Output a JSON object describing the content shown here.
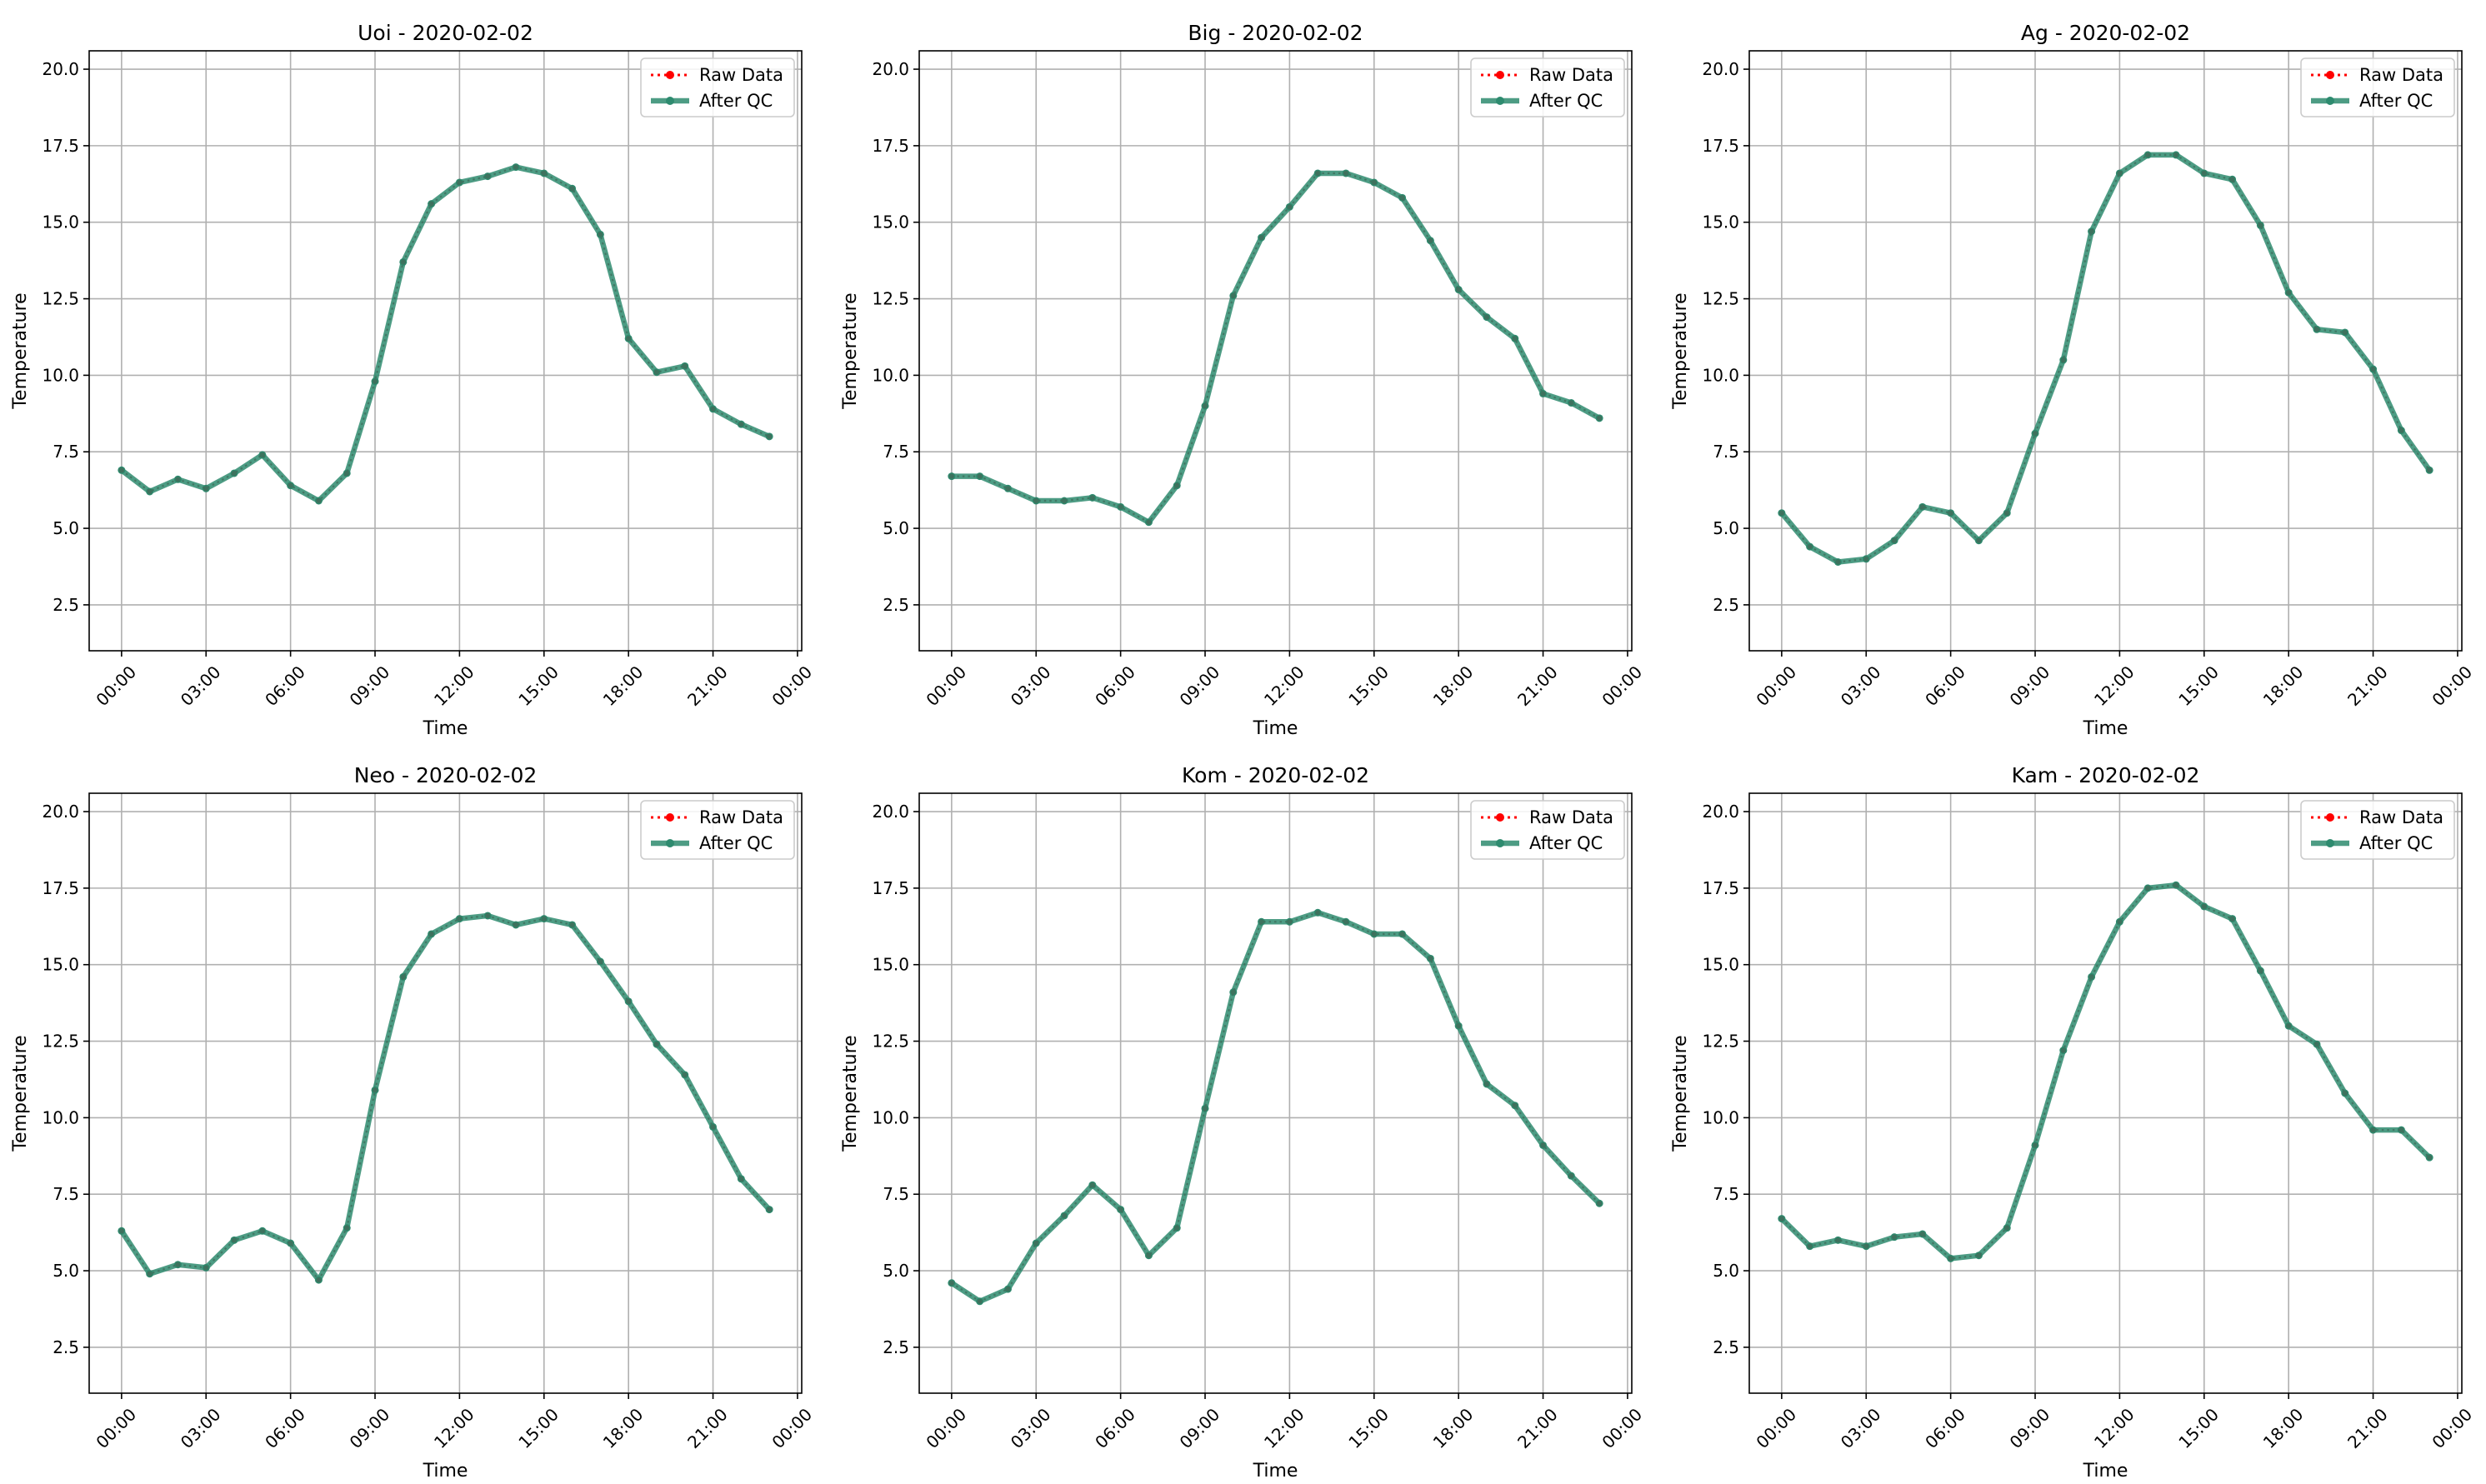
{
  "colors": {
    "raw": "#ff0000",
    "qc": "#2e8b6f",
    "grid": "#b0b0b0",
    "axis": "#000000",
    "legend_border": "#cccccc"
  },
  "chart_data": [
    {
      "type": "line",
      "title": "Uoi - 2020-02-02",
      "xlabel": "Time",
      "ylabel": "Temperature",
      "ylim": [
        1.0,
        20.6
      ],
      "xlim_hours": [
        -1.15,
        24.15
      ],
      "x_ticks": [
        "00:00",
        "03:00",
        "06:00",
        "09:00",
        "12:00",
        "15:00",
        "18:00",
        "21:00",
        "00:00"
      ],
      "y_ticks": [
        "2.5",
        "5.0",
        "7.5",
        "10.0",
        "12.5",
        "15.0",
        "17.5",
        "20.0"
      ],
      "grid": true,
      "legend": "top-right",
      "x_hours": [
        0,
        1,
        2,
        3,
        4,
        5,
        6,
        7,
        8,
        9,
        10,
        11,
        12,
        13,
        14,
        15,
        16,
        17,
        18,
        19,
        20,
        21,
        22,
        23
      ],
      "series": [
        {
          "name": "Raw Data",
          "values": [
            6.9,
            6.2,
            6.6,
            6.3,
            6.8,
            7.4,
            6.4,
            5.9,
            6.8,
            9.8,
            13.7,
            15.6,
            16.3,
            16.5,
            16.8,
            16.6,
            16.1,
            14.6,
            11.2,
            10.1,
            10.3,
            8.9,
            8.4,
            8.0
          ]
        },
        {
          "name": "After QC",
          "values": [
            6.9,
            6.2,
            6.6,
            6.3,
            6.8,
            7.4,
            6.4,
            5.9,
            6.8,
            9.8,
            13.7,
            15.6,
            16.3,
            16.5,
            16.8,
            16.6,
            16.1,
            14.6,
            11.2,
            10.1,
            10.3,
            8.9,
            8.4,
            8.0
          ]
        }
      ]
    },
    {
      "type": "line",
      "title": "Big - 2020-02-02",
      "xlabel": "Time",
      "ylabel": "Temperature",
      "ylim": [
        1.0,
        20.6
      ],
      "xlim_hours": [
        -1.15,
        24.15
      ],
      "x_ticks": [
        "00:00",
        "03:00",
        "06:00",
        "09:00",
        "12:00",
        "15:00",
        "18:00",
        "21:00",
        "00:00"
      ],
      "y_ticks": [
        "2.5",
        "5.0",
        "7.5",
        "10.0",
        "12.5",
        "15.0",
        "17.5",
        "20.0"
      ],
      "grid": true,
      "legend": "top-right",
      "x_hours": [
        0,
        1,
        2,
        3,
        4,
        5,
        6,
        7,
        8,
        9,
        10,
        11,
        12,
        13,
        14,
        15,
        16,
        17,
        18,
        19,
        20,
        21,
        22,
        23
      ],
      "series": [
        {
          "name": "Raw Data",
          "values": [
            6.7,
            6.7,
            6.3,
            5.9,
            5.9,
            6.0,
            5.7,
            5.2,
            6.4,
            9.0,
            12.6,
            14.5,
            15.5,
            16.6,
            16.6,
            16.3,
            15.8,
            14.4,
            12.8,
            11.9,
            11.2,
            9.4,
            9.1,
            8.6
          ]
        },
        {
          "name": "After QC",
          "values": [
            6.7,
            6.7,
            6.3,
            5.9,
            5.9,
            6.0,
            5.7,
            5.2,
            6.4,
            9.0,
            12.6,
            14.5,
            15.5,
            16.6,
            16.6,
            16.3,
            15.8,
            14.4,
            12.8,
            11.9,
            11.2,
            9.4,
            9.1,
            8.6
          ]
        }
      ]
    },
    {
      "type": "line",
      "title": "Ag - 2020-02-02",
      "xlabel": "Time",
      "ylabel": "Temperature",
      "ylim": [
        1.0,
        20.6
      ],
      "xlim_hours": [
        -1.15,
        24.15
      ],
      "x_ticks": [
        "00:00",
        "03:00",
        "06:00",
        "09:00",
        "12:00",
        "15:00",
        "18:00",
        "21:00",
        "00:00"
      ],
      "y_ticks": [
        "2.5",
        "5.0",
        "7.5",
        "10.0",
        "12.5",
        "15.0",
        "17.5",
        "20.0"
      ],
      "grid": true,
      "legend": "top-right",
      "x_hours": [
        0,
        1,
        2,
        3,
        4,
        5,
        6,
        7,
        8,
        9,
        10,
        11,
        12,
        13,
        14,
        15,
        16,
        17,
        18,
        19,
        20,
        21,
        22,
        23
      ],
      "series": [
        {
          "name": "Raw Data",
          "values": [
            5.5,
            4.4,
            3.9,
            4.0,
            4.6,
            5.7,
            5.5,
            4.6,
            5.5,
            8.1,
            10.5,
            14.7,
            16.6,
            17.2,
            17.2,
            16.6,
            16.4,
            14.9,
            12.7,
            11.5,
            11.4,
            10.2,
            8.2,
            6.9
          ]
        },
        {
          "name": "After QC",
          "values": [
            5.5,
            4.4,
            3.9,
            4.0,
            4.6,
            5.7,
            5.5,
            4.6,
            5.5,
            8.1,
            10.5,
            14.7,
            16.6,
            17.2,
            17.2,
            16.6,
            16.4,
            14.9,
            12.7,
            11.5,
            11.4,
            10.2,
            8.2,
            6.9
          ]
        }
      ]
    },
    {
      "type": "line",
      "title": "Neo - 2020-02-02",
      "xlabel": "Time",
      "ylabel": "Temperature",
      "ylim": [
        1.0,
        20.6
      ],
      "xlim_hours": [
        -1.15,
        24.15
      ],
      "x_ticks": [
        "00:00",
        "03:00",
        "06:00",
        "09:00",
        "12:00",
        "15:00",
        "18:00",
        "21:00",
        "00:00"
      ],
      "y_ticks": [
        "2.5",
        "5.0",
        "7.5",
        "10.0",
        "12.5",
        "15.0",
        "17.5",
        "20.0"
      ],
      "grid": true,
      "legend": "top-right",
      "x_hours": [
        0,
        1,
        2,
        3,
        4,
        5,
        6,
        7,
        8,
        9,
        10,
        11,
        12,
        13,
        14,
        15,
        16,
        17,
        18,
        19,
        20,
        21,
        22,
        23
      ],
      "series": [
        {
          "name": "Raw Data",
          "values": [
            6.3,
            4.9,
            5.2,
            5.1,
            6.0,
            6.3,
            5.9,
            4.7,
            6.4,
            10.9,
            14.6,
            16.0,
            16.5,
            16.6,
            16.3,
            16.5,
            16.3,
            15.1,
            13.8,
            12.4,
            11.4,
            9.7,
            8.0,
            7.0
          ]
        },
        {
          "name": "After QC",
          "values": [
            6.3,
            4.9,
            5.2,
            5.1,
            6.0,
            6.3,
            5.9,
            4.7,
            6.4,
            10.9,
            14.6,
            16.0,
            16.5,
            16.6,
            16.3,
            16.5,
            16.3,
            15.1,
            13.8,
            12.4,
            11.4,
            9.7,
            8.0,
            7.0
          ]
        }
      ]
    },
    {
      "type": "line",
      "title": "Kom - 2020-02-02",
      "xlabel": "Time",
      "ylabel": "Temperature",
      "ylim": [
        1.0,
        20.6
      ],
      "xlim_hours": [
        -1.15,
        24.15
      ],
      "x_ticks": [
        "00:00",
        "03:00",
        "06:00",
        "09:00",
        "12:00",
        "15:00",
        "18:00",
        "21:00",
        "00:00"
      ],
      "y_ticks": [
        "2.5",
        "5.0",
        "7.5",
        "10.0",
        "12.5",
        "15.0",
        "17.5",
        "20.0"
      ],
      "grid": true,
      "legend": "top-right",
      "x_hours": [
        0,
        1,
        2,
        3,
        4,
        5,
        6,
        7,
        8,
        9,
        10,
        11,
        12,
        13,
        14,
        15,
        16,
        17,
        18,
        19,
        20,
        21,
        22,
        23
      ],
      "series": [
        {
          "name": "Raw Data",
          "values": [
            4.6,
            4.0,
            4.4,
            5.9,
            6.8,
            7.8,
            7.0,
            5.5,
            6.4,
            10.3,
            14.1,
            16.4,
            16.4,
            16.7,
            16.4,
            16.0,
            16.0,
            15.2,
            13.0,
            11.1,
            10.4,
            9.1,
            8.1,
            7.2
          ]
        },
        {
          "name": "After QC",
          "values": [
            4.6,
            4.0,
            4.4,
            5.9,
            6.8,
            7.8,
            7.0,
            5.5,
            6.4,
            10.3,
            14.1,
            16.4,
            16.4,
            16.7,
            16.4,
            16.0,
            16.0,
            15.2,
            13.0,
            11.1,
            10.4,
            9.1,
            8.1,
            7.2
          ]
        }
      ]
    },
    {
      "type": "line",
      "title": "Kam - 2020-02-02",
      "xlabel": "Time",
      "ylabel": "Temperature",
      "ylim": [
        1.0,
        20.6
      ],
      "xlim_hours": [
        -1.15,
        24.15
      ],
      "x_ticks": [
        "00:00",
        "03:00",
        "06:00",
        "09:00",
        "12:00",
        "15:00",
        "18:00",
        "21:00",
        "00:00"
      ],
      "y_ticks": [
        "2.5",
        "5.0",
        "7.5",
        "10.0",
        "12.5",
        "15.0",
        "17.5",
        "20.0"
      ],
      "grid": true,
      "legend": "top-right",
      "x_hours": [
        0,
        1,
        2,
        3,
        4,
        5,
        6,
        7,
        8,
        9,
        10,
        11,
        12,
        13,
        14,
        15,
        16,
        17,
        18,
        19,
        20,
        21,
        22,
        23
      ],
      "series": [
        {
          "name": "Raw Data",
          "values": [
            6.7,
            5.8,
            6.0,
            5.8,
            6.1,
            6.2,
            5.4,
            5.5,
            6.4,
            9.1,
            12.2,
            14.6,
            16.4,
            17.5,
            17.6,
            16.9,
            16.5,
            14.8,
            13.0,
            12.4,
            10.8,
            9.6,
            9.6,
            8.7
          ]
        },
        {
          "name": "After QC",
          "values": [
            6.7,
            5.8,
            6.0,
            5.8,
            6.1,
            6.2,
            5.4,
            5.5,
            6.4,
            9.1,
            12.2,
            14.6,
            16.4,
            17.5,
            17.6,
            16.9,
            16.5,
            14.8,
            13.0,
            12.4,
            10.8,
            9.6,
            9.6,
            8.7
          ]
        }
      ]
    }
  ]
}
